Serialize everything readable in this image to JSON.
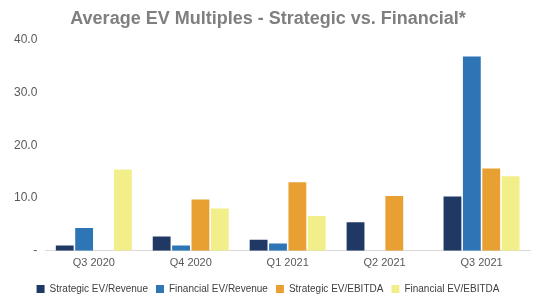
{
  "chart_data": {
    "type": "bar",
    "title": "Average EV Multiples - Strategic vs. Financial*",
    "categories": [
      "Q3 2020",
      "Q4 2020",
      "Q1 2021",
      "Q2 2021",
      "Q3 2021"
    ],
    "series": [
      {
        "name": "Strategic EV/Revenue",
        "color": "#1f3864",
        "values": [
          1.0,
          2.7,
          2.1,
          5.4,
          10.3
        ]
      },
      {
        "name": "Financial EV/Revenue",
        "color": "#2e75b6",
        "values": [
          4.3,
          1.0,
          1.4,
          null,
          36.8
        ]
      },
      {
        "name": "Strategic EV/EBITDA",
        "color": "#e8a033",
        "values": [
          null,
          9.7,
          13.0,
          10.4,
          15.6
        ]
      },
      {
        "name": "Financial EV/EBITDA",
        "color": "#f2ef8a",
        "values": [
          15.4,
          8.0,
          6.6,
          null,
          14.1
        ]
      }
    ],
    "ylim": [
      0,
      40
    ],
    "yticks": [
      {
        "value": 0,
        "label": "-"
      },
      {
        "value": 10,
        "label": "10.0"
      },
      {
        "value": 20,
        "label": "20.0"
      },
      {
        "value": 30,
        "label": "30.0"
      },
      {
        "value": 40,
        "label": "40.0"
      }
    ],
    "grid": false,
    "legend": "bottom"
  }
}
